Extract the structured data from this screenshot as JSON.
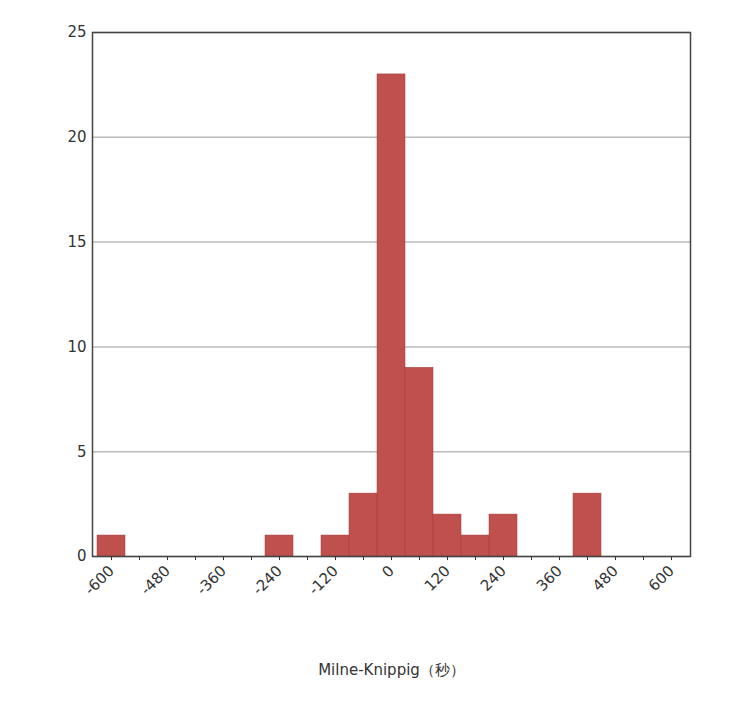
{
  "chart_data": {
    "type": "bar",
    "x_label": "Milne-Knippig（秒）",
    "categories": [
      "-600",
      null,
      "-480",
      null,
      "-360",
      null,
      "-240",
      null,
      "-120",
      null,
      "0",
      null,
      "120",
      null,
      "240",
      null,
      "360",
      null,
      "480",
      null,
      "600"
    ],
    "values": [
      1,
      0,
      0,
      0,
      0,
      0,
      1,
      0,
      1,
      3,
      23,
      9,
      2,
      1,
      2,
      0,
      0,
      3,
      0,
      0,
      0
    ],
    "color": "#c0504d",
    "ylim": [
      0,
      25
    ],
    "yticks": [
      0,
      5,
      10,
      15,
      20,
      25
    ],
    "grid": true
  }
}
